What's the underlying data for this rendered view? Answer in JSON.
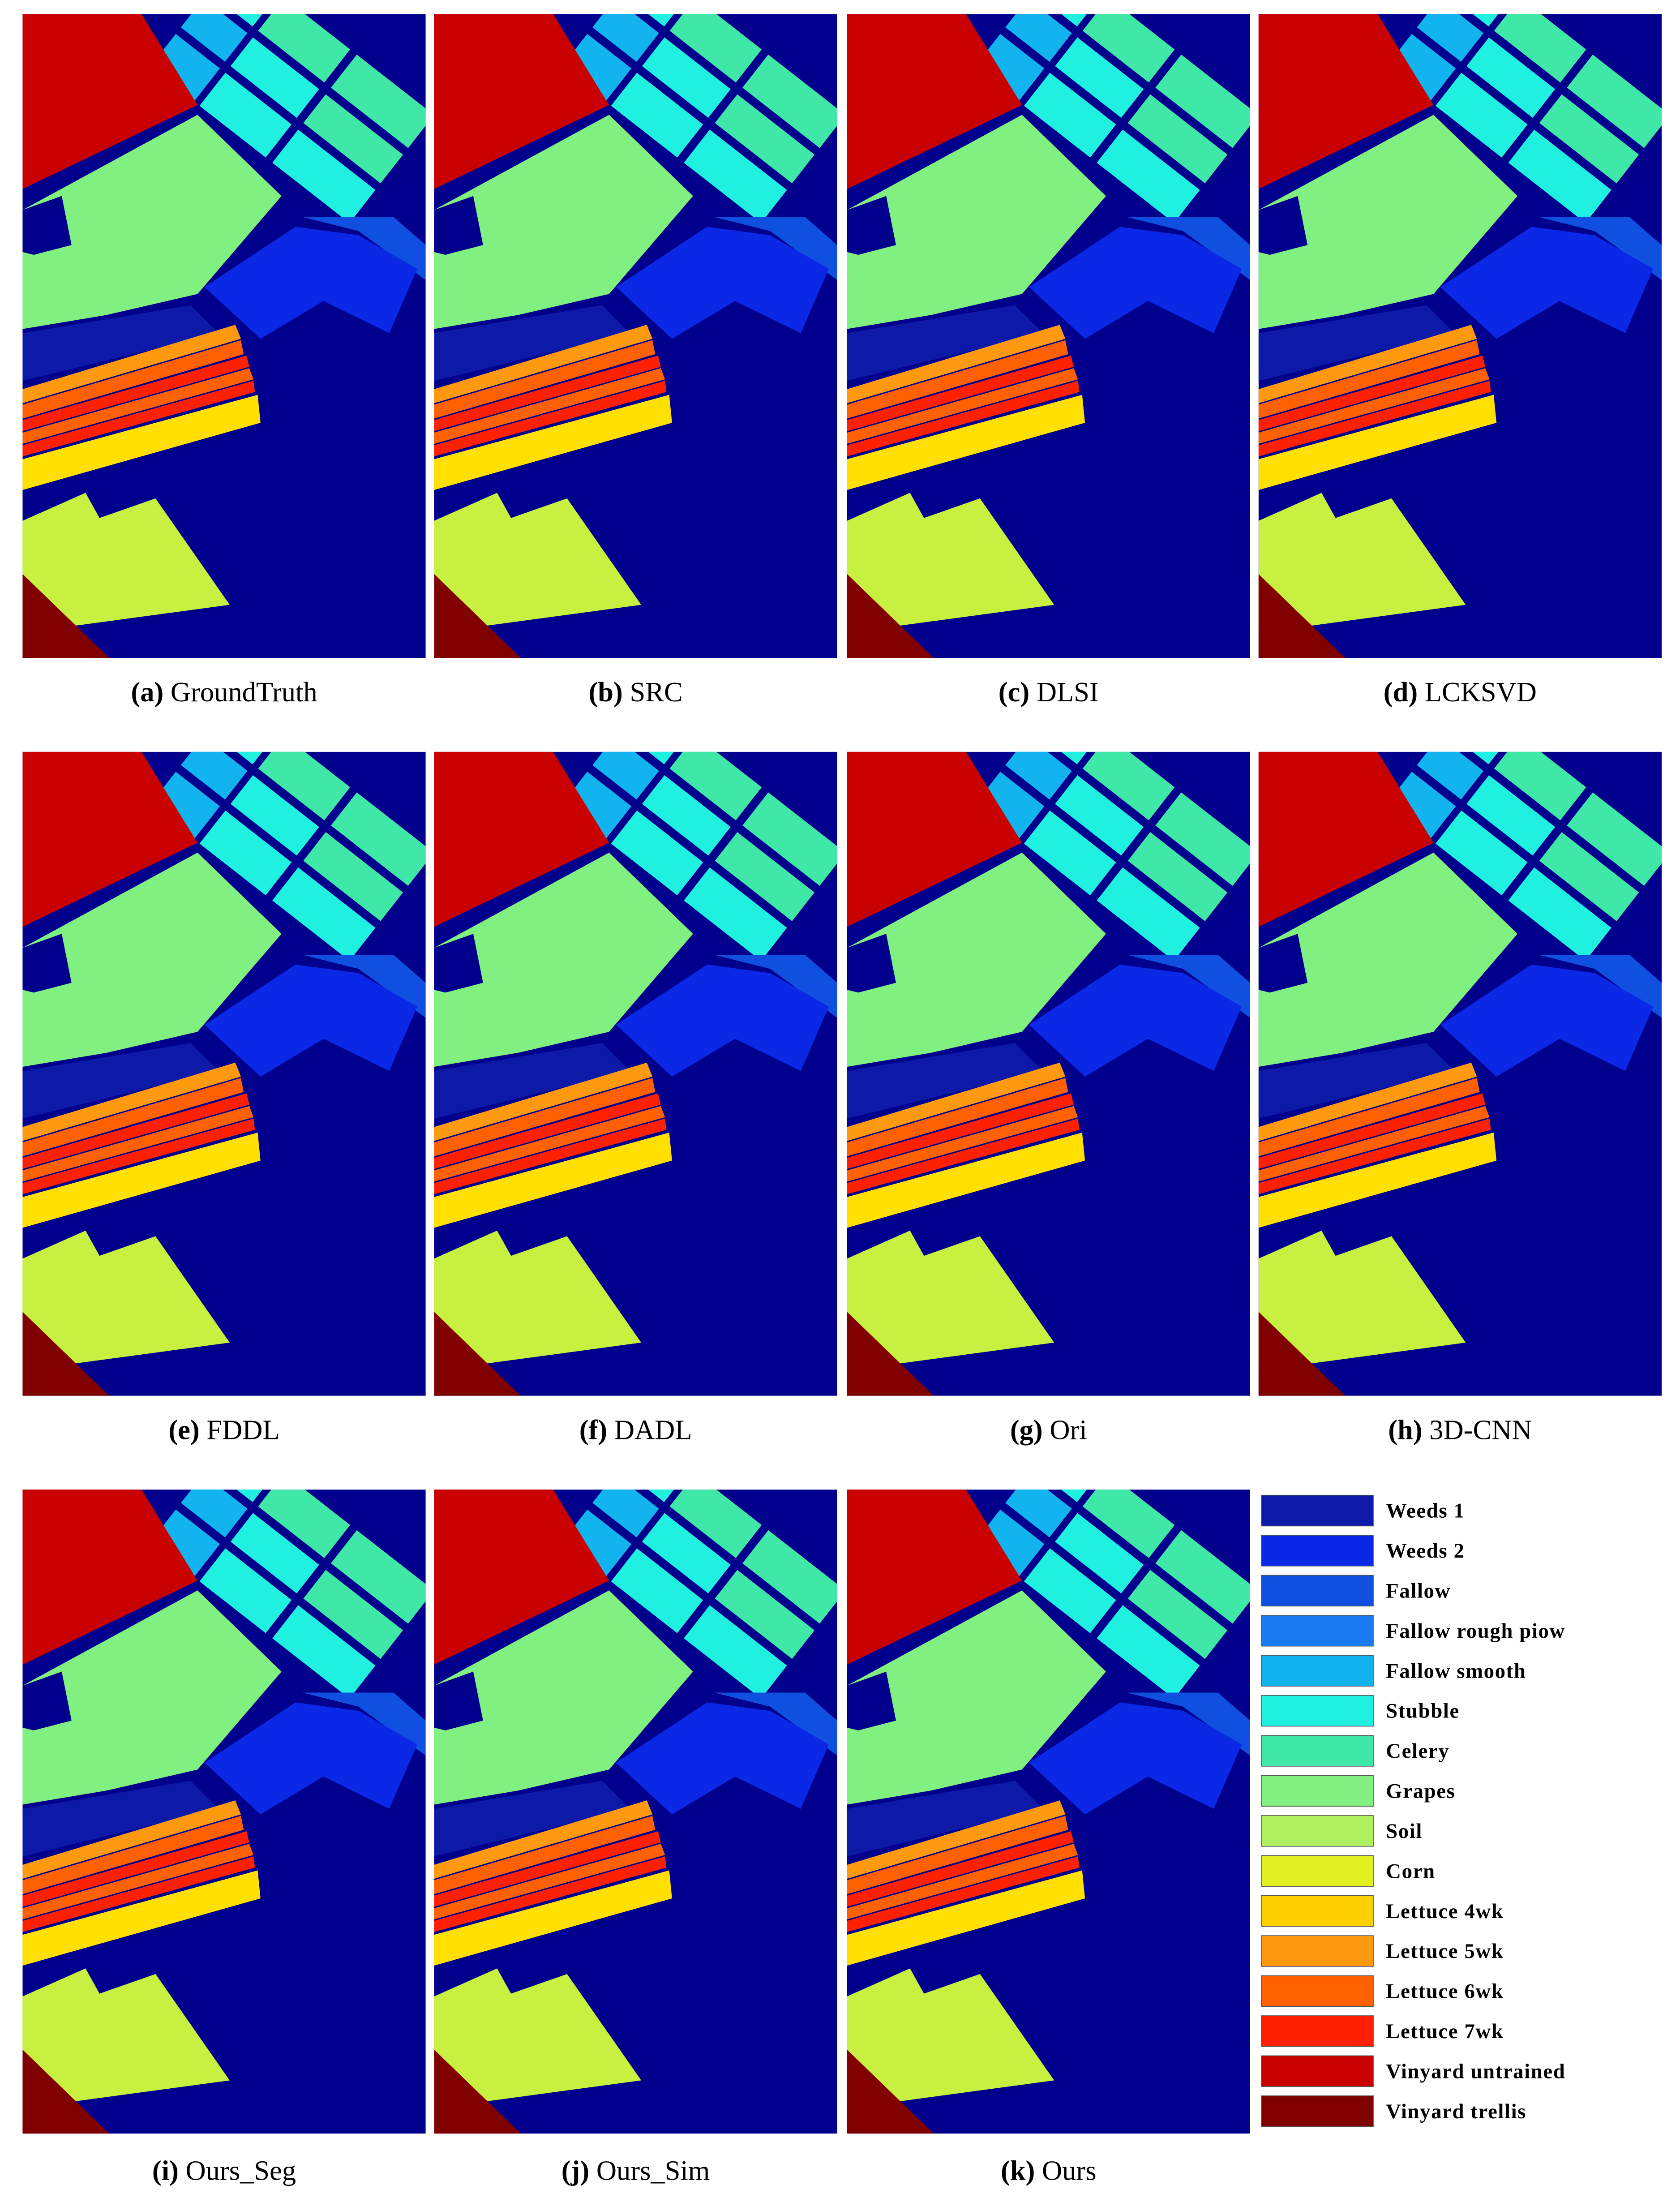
{
  "panels": [
    {
      "label": "(a)",
      "name": "GroundTruth"
    },
    {
      "label": "(b)",
      "name": "SRC"
    },
    {
      "label": "(c)",
      "name": "DLSI"
    },
    {
      "label": "(d)",
      "name": "LCKSVD"
    },
    {
      "label": "(e)",
      "name": "FDDL"
    },
    {
      "label": "(f)",
      "name": "DADL"
    },
    {
      "label": "(g)",
      "name": "Ori"
    },
    {
      "label": "(h)",
      "name": "3D-CNN"
    },
    {
      "label": "(i)",
      "name": "Ours_Seg"
    },
    {
      "label": "(j)",
      "name": "Ours_Sim"
    },
    {
      "label": "(k)",
      "name": "Ours"
    }
  ],
  "legend": [
    {
      "text": "Weeds 1",
      "color": "#0d1aa8"
    },
    {
      "text": "Weeds 2",
      "color": "#0a28e6"
    },
    {
      "text": "Fallow",
      "color": "#1050e0"
    },
    {
      "text": "Fallow rough piow",
      "color": "#1a7cf0"
    },
    {
      "text": "Fallow smooth",
      "color": "#12b4f0"
    },
    {
      "text": "Stubble",
      "color": "#20f0e0"
    },
    {
      "text": "Celery",
      "color": "#40e8a8"
    },
    {
      "text": "Grapes",
      "color": "#80f080"
    },
    {
      "text": "Soil",
      "color": "#b0f060"
    },
    {
      "text": "Corn",
      "color": "#e0f020"
    },
    {
      "text": "Lettuce 4wk",
      "color": "#ffd000"
    },
    {
      "text": "Lettuce 5wk",
      "color": "#ff9a10"
    },
    {
      "text": "Lettuce 6wk",
      "color": "#ff6000"
    },
    {
      "text": "Lettuce 7wk",
      "color": "#ff2000"
    },
    {
      "text": "Vinyard untrained",
      "color": "#c80000"
    },
    {
      "text": "Vinyard trellis",
      "color": "#800000"
    }
  ]
}
